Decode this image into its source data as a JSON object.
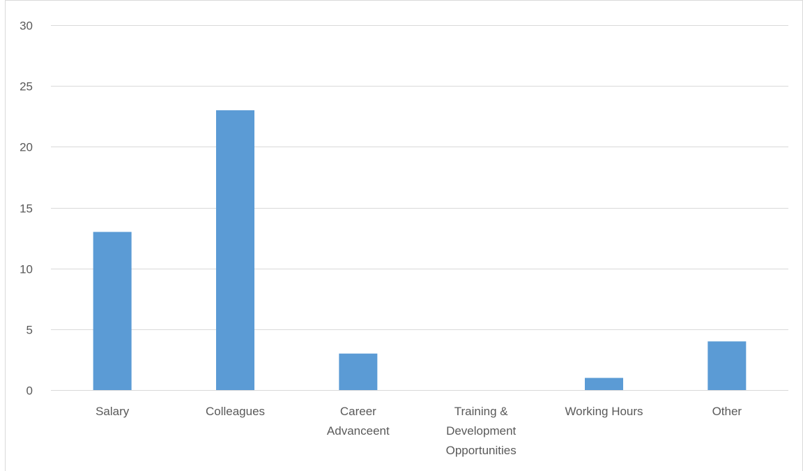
{
  "chart_data": {
    "type": "bar",
    "title": "",
    "xlabel": "",
    "ylabel": "",
    "categories": [
      [
        "Salary"
      ],
      [
        "Colleagues"
      ],
      [
        "Career",
        "Advanceent"
      ],
      [
        "Training &",
        "Development",
        "Opportunities"
      ],
      [
        "Working Hours"
      ],
      [
        "Other"
      ]
    ],
    "values": [
      13,
      23,
      3,
      0,
      1,
      4
    ],
    "ylim": [
      0,
      30
    ],
    "yticks": [
      0,
      5,
      10,
      15,
      20,
      25,
      30
    ],
    "grid": true,
    "legend": "none",
    "bar_color": "#5b9bd5",
    "grid_color": "#d9d9d9",
    "frame_color": "#d9d9d9",
    "text_color": "#595959"
  }
}
